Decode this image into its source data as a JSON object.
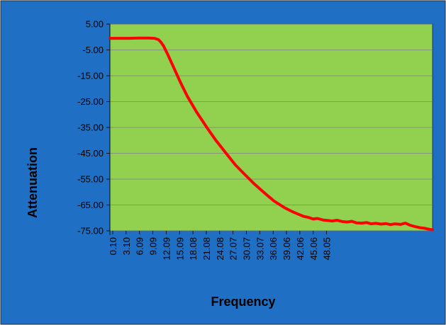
{
  "colors": {
    "outer_background": "#1f6fc5",
    "plot_background": "#92d050",
    "series_line": "#ff0000",
    "gridline": "#7f7f7f"
  },
  "chart_data": {
    "type": "line",
    "title": "",
    "xlabel": "Frequency",
    "ylabel": "Attenuation",
    "ylim": [
      -75,
      5
    ],
    "y_ticks": [
      "5.00",
      "-5.00",
      "-15.00",
      "-25.00",
      "-35.00",
      "-45.00",
      "-55.00",
      "-65.00",
      "-75.00"
    ],
    "x_ticks": [
      "0.10",
      "3.10",
      "6.09",
      "9.09",
      "12.09",
      "15.09",
      "18.08",
      "21.08",
      "24.08",
      "27.07",
      "30.07",
      "33.07",
      "36.06",
      "39.06",
      "42.06",
      "45.06",
      "48.05"
    ],
    "xlim": [
      0.1,
      50
    ],
    "grid": "horizontal",
    "legend": "none",
    "series": [
      {
        "x": [
          0.1,
          1.5,
          3.1,
          4.5,
          6.09,
          7.0,
          7.6,
          8.0,
          8.4,
          9.09,
          10.0,
          11.0,
          12.09,
          13.5,
          15.09,
          16.5,
          18.08,
          19.5,
          21.08,
          22.5,
          24.08,
          25.5,
          27.07,
          28.0,
          28.5,
          29.2,
          30.07,
          30.8,
          31.5,
          32.2,
          33.07,
          33.8,
          34.5,
          35.2,
          36.06,
          36.8,
          37.5,
          38.2,
          39.06,
          39.8,
          40.5,
          41.2,
          42.06,
          42.8,
          43.5,
          44.2,
          45.06,
          45.8,
          46.5,
          47.2,
          48.05,
          48.8,
          49.5,
          50.0
        ],
        "values": [
          -0.5,
          -0.5,
          -0.5,
          -0.4,
          -0.4,
          -0.5,
          -1.0,
          -2.0,
          -3.5,
          -7.0,
          -12.0,
          -17.5,
          -23.0,
          -29.0,
          -35.0,
          -40.0,
          -45.0,
          -49.5,
          -53.5,
          -57.0,
          -60.5,
          -63.5,
          -66.0,
          -67.2,
          -67.8,
          -68.5,
          -69.4,
          -69.8,
          -70.4,
          -70.2,
          -70.8,
          -71.0,
          -71.2,
          -70.9,
          -71.4,
          -71.6,
          -71.3,
          -71.9,
          -72.0,
          -71.8,
          -72.3,
          -72.1,
          -72.4,
          -72.2,
          -72.6,
          -72.3,
          -72.5,
          -72.0,
          -72.8,
          -73.3,
          -73.8,
          -74.0,
          -74.4,
          -74.6
        ]
      }
    ]
  }
}
